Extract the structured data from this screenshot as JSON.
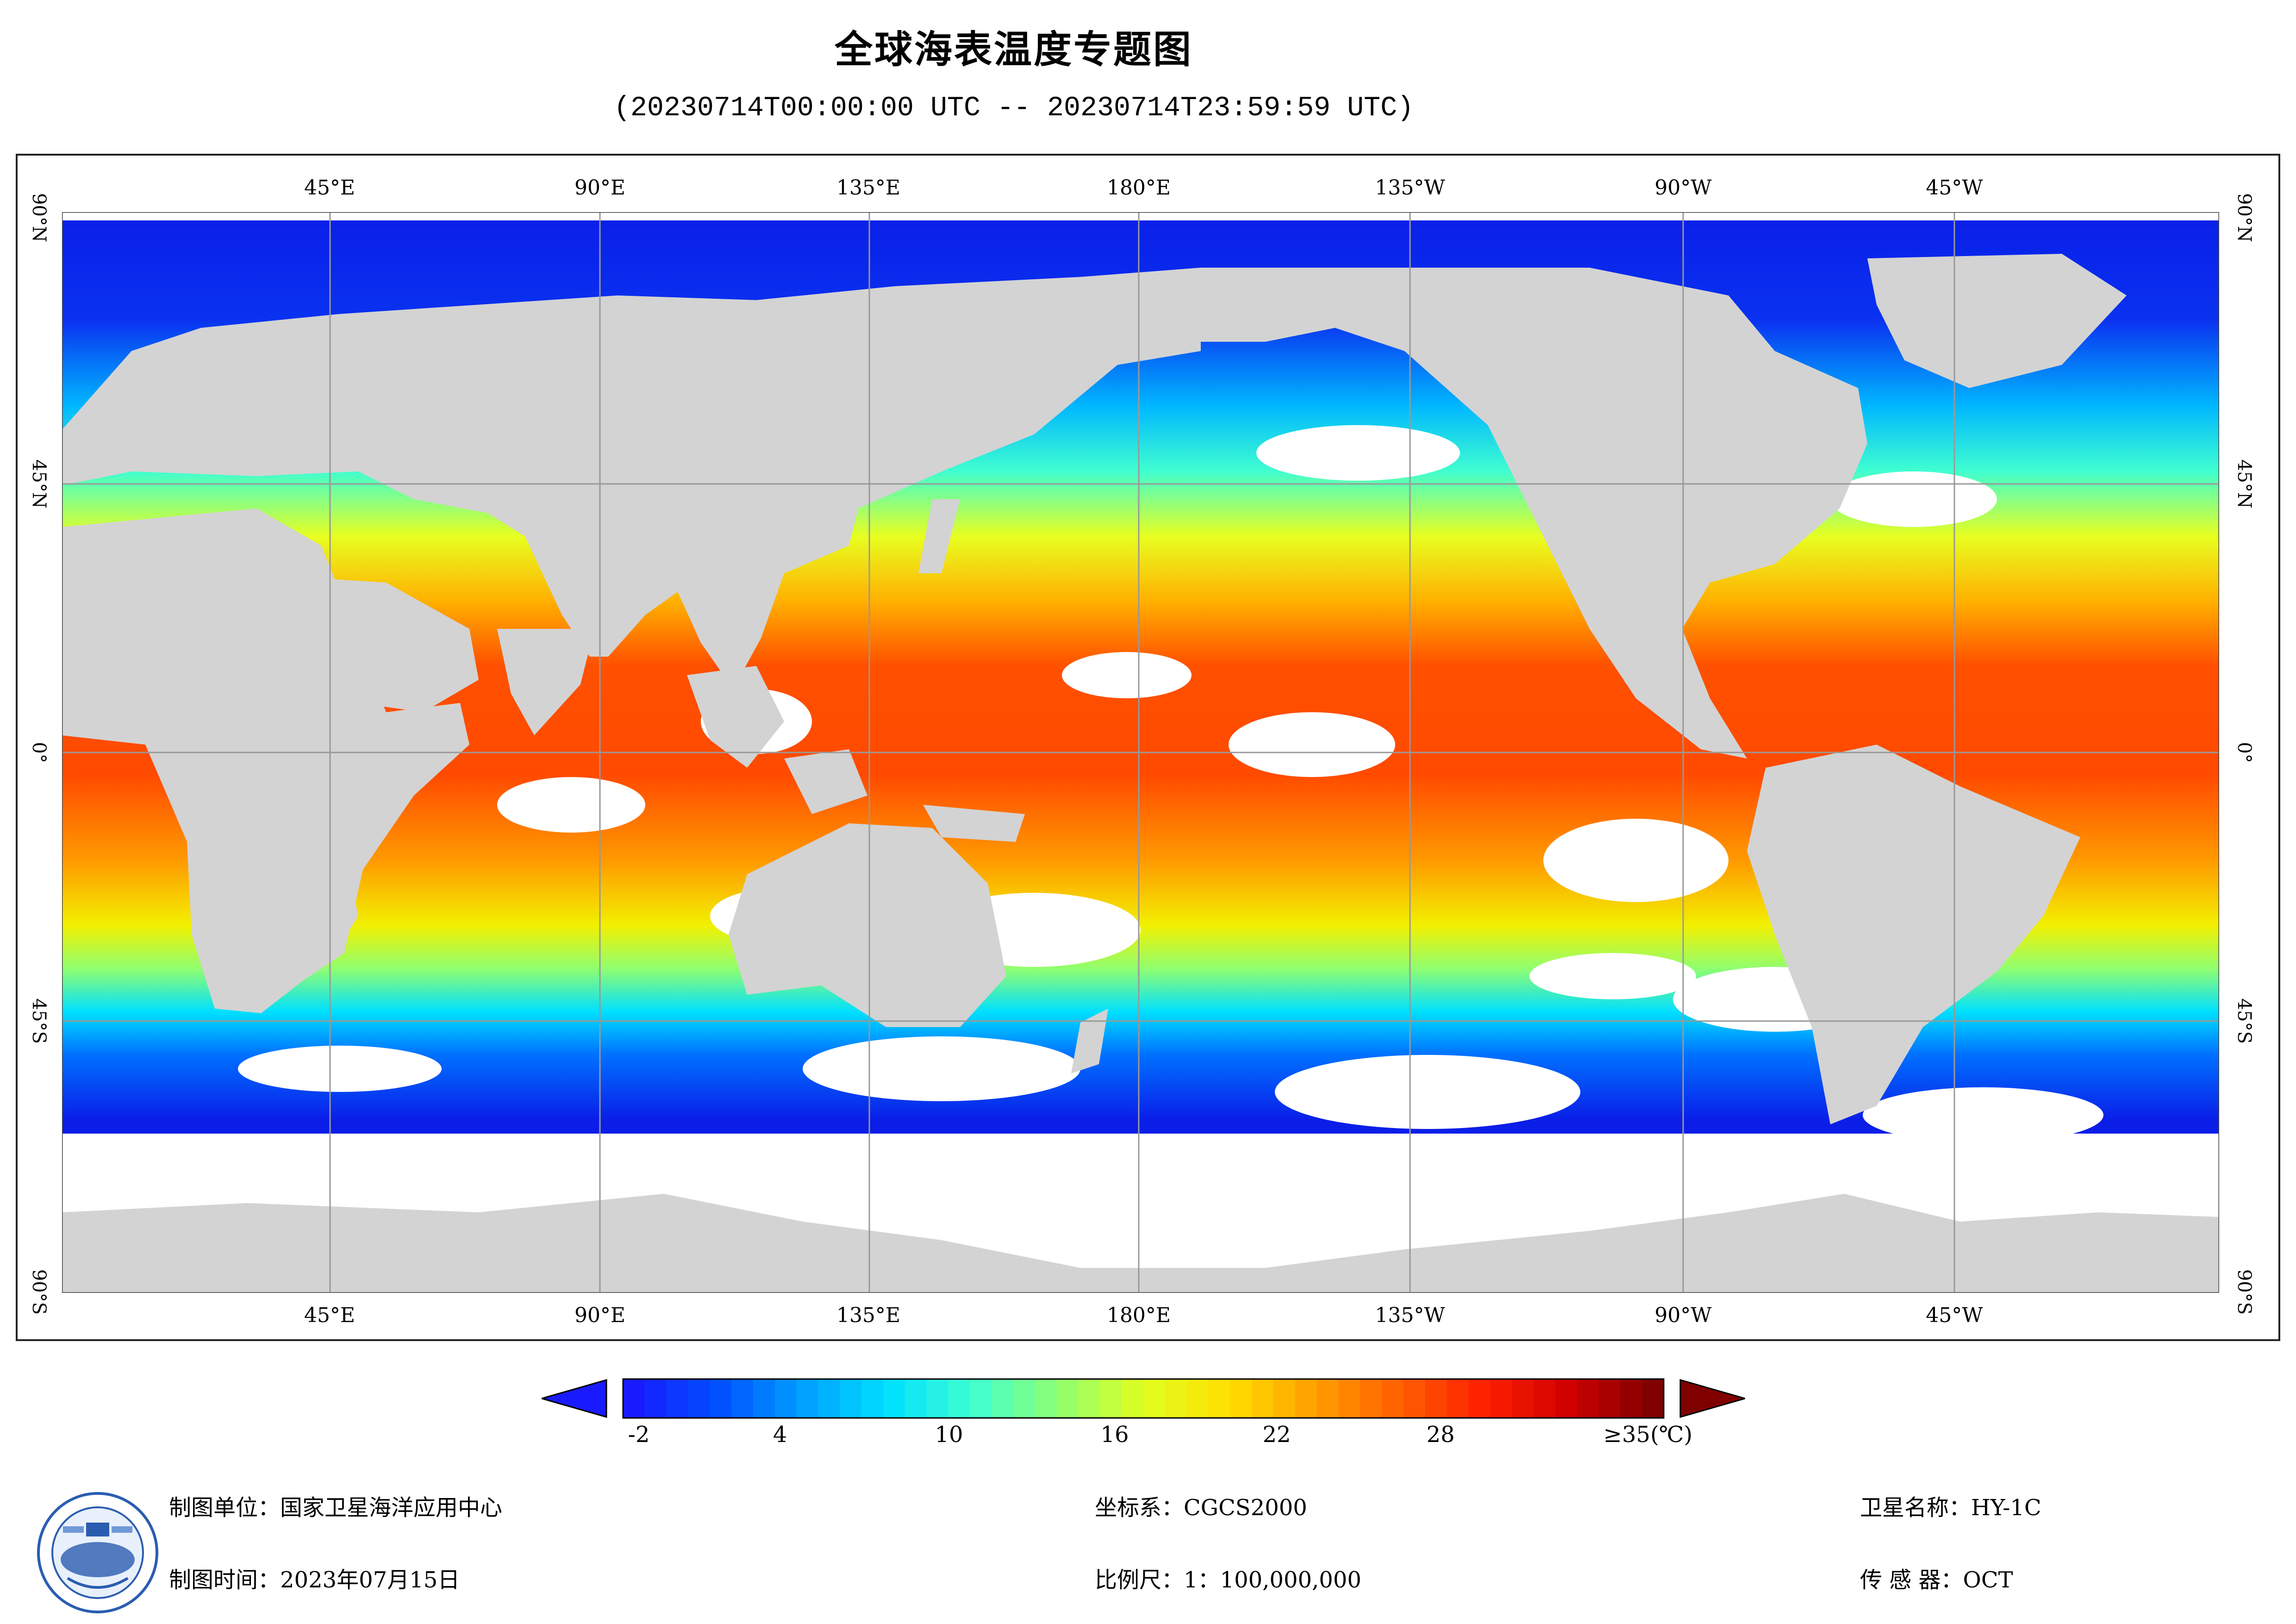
{
  "title": "全球海表温度专题图",
  "subtitle": "(20230714T00:00:00 UTC -- 20230714T23:59:59 UTC)",
  "map": {
    "lon_labels": [
      "45°E",
      "90°E",
      "135°E",
      "180°E",
      "135°W",
      "90°W",
      "45°W"
    ],
    "lat_labels": [
      "90°N",
      "45°N",
      "0°",
      "45°S",
      "90°S"
    ],
    "land_color": "#d3d3d3",
    "cloud_color": "#ffffff",
    "grid_color": "#999999"
  },
  "legend": {
    "tick_labels": [
      "-2",
      "4",
      "10",
      "16",
      "22",
      "28",
      "≥35(℃)"
    ],
    "min_value": -2,
    "max_value": 35,
    "colors": [
      "#1a1aff",
      "#0050ff",
      "#00a0ff",
      "#00e0ff",
      "#40ffd0",
      "#90ff70",
      "#e0ff20",
      "#ffe000",
      "#ffa000",
      "#ff6000",
      "#ff2000",
      "#d00000",
      "#800000"
    ],
    "under_arrow_color": "#1a1aff",
    "over_arrow_color": "#800000"
  },
  "footer": {
    "org": "制图单位：国家卫星海洋应用中心",
    "time": "制图时间：2023年07月15日",
    "crs": "坐标系：CGCS2000",
    "scale": "比例尺：1：100,000,000",
    "satellite": "卫星名称：HY-1C",
    "sensor": "传 感 器：OCT",
    "logo_icon": "satellite-ocean-center-logo-icon"
  }
}
